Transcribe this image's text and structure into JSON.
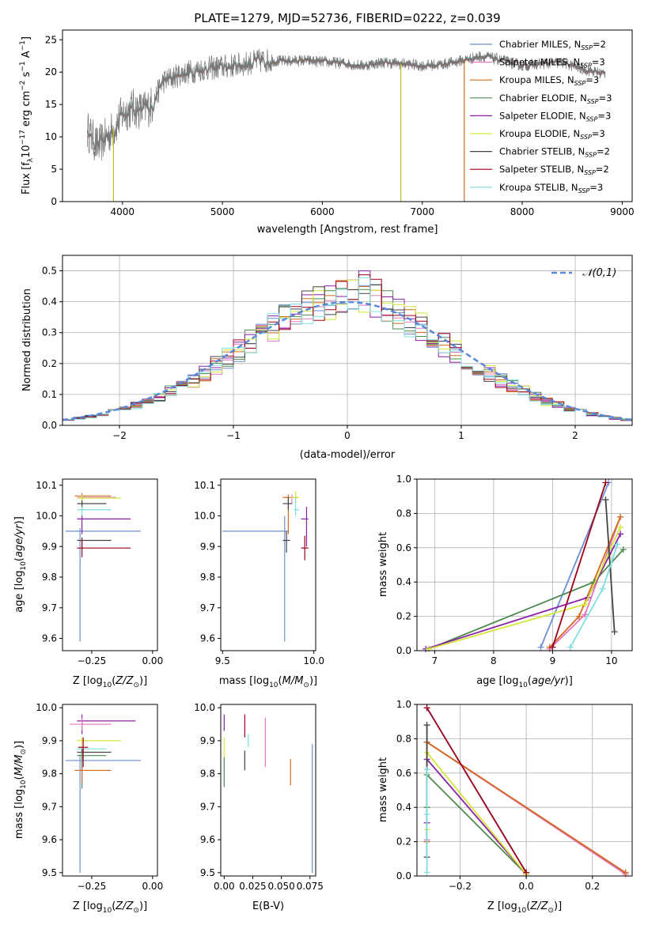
{
  "chart_data": [
    {
      "panel": "spectrum",
      "type": "line",
      "title": "PLATE=1279, MJD=52736, FIBERID=0222, z=0.039",
      "xlabel": "wavelength [Angstrom, rest frame]",
      "ylabel_parts": [
        "Flux [f",
        "λ",
        "10",
        "−17",
        " erg cm",
        "−2",
        " s",
        "−1",
        " A",
        "−1",
        "]"
      ],
      "xlim": [
        3400,
        9100
      ],
      "ylim": [
        0,
        26.5
      ],
      "xticks": [
        4000,
        5000,
        6000,
        7000,
        8000,
        9000
      ],
      "yticks": [
        0,
        5,
        10,
        15,
        20,
        25
      ],
      "continuum_knots": [
        [
          3650,
          11
        ],
        [
          3750,
          8.5
        ],
        [
          3900,
          11
        ],
        [
          4000,
          13.5
        ],
        [
          4100,
          14.5
        ],
        [
          4200,
          14
        ],
        [
          4300,
          15
        ],
        [
          4400,
          18.5
        ],
        [
          4600,
          19.8
        ],
        [
          4800,
          20.5
        ],
        [
          5000,
          20.8
        ],
        [
          5200,
          21.2
        ],
        [
          5400,
          21.8
        ],
        [
          5600,
          21.7
        ],
        [
          5800,
          21.8
        ],
        [
          6000,
          21.6
        ],
        [
          6200,
          21.4
        ],
        [
          6400,
          21
        ],
        [
          6600,
          21.5
        ],
        [
          6800,
          21.3
        ],
        [
          7000,
          21
        ],
        [
          7200,
          21.2
        ],
        [
          7400,
          21.8
        ],
        [
          7600,
          22.5
        ],
        [
          7800,
          21.8
        ],
        [
          8000,
          21
        ],
        [
          8200,
          21.3
        ],
        [
          8400,
          21.5
        ],
        [
          8600,
          20.5
        ],
        [
          8800,
          19.8
        ]
      ],
      "dropouts": [
        {
          "x": 3910,
          "color": "#bcbd22"
        },
        {
          "x": 6785,
          "color": "#bcbd22"
        },
        {
          "x": 7420,
          "color": "#d2691e"
        }
      ],
      "legend_position": "upper right",
      "series": [
        {
          "name": "Chabrier MILES",
          "nssp": "2",
          "color": "#6a8fd4"
        },
        {
          "name": "Salpeter MILES",
          "nssp": "3",
          "color": "#e377c2"
        },
        {
          "name": "Kroupa MILES",
          "nssp": "3",
          "color": "#d2691e"
        },
        {
          "name": "Chabrier ELODIE",
          "nssp": "3",
          "color": "#4d8a4d"
        },
        {
          "name": "Salpeter ELODIE",
          "nssp": "3",
          "color": "#8b1fa8"
        },
        {
          "name": "Kroupa ELODIE",
          "nssp": "3",
          "color": "#d4e636"
        },
        {
          "name": "Chabrier STELIB",
          "nssp": "2",
          "color": "#444444"
        },
        {
          "name": "Salpeter STELIB",
          "nssp": "2",
          "color": "#a0001a"
        },
        {
          "name": "Kroupa STELIB",
          "nssp": "3",
          "color": "#7fdfe0"
        }
      ],
      "data_color": "#777777"
    },
    {
      "panel": "residuals",
      "type": "histogram",
      "xlabel": "(data-model)/error",
      "ylabel": "Normed distribution",
      "xlim": [
        -2.5,
        2.5
      ],
      "ylim": [
        0,
        0.55
      ],
      "xticks": [
        -2,
        -1,
        0,
        1,
        2
      ],
      "yticks": [
        0.0,
        0.1,
        0.2,
        0.3,
        0.4,
        0.5
      ],
      "grid": true,
      "bin_width": 0.1,
      "legend": "𝒩(0,1)",
      "legend_position": "upper right",
      "reference_color": "#5b87d8"
    },
    {
      "panel": "age_vs_Z",
      "type": "errorbar",
      "xlabel": "Z [log10(Z/Z☉)]",
      "ylabel": "age [log10(age/yr)]",
      "xlim": [
        -0.37,
        0.02
      ],
      "ylim": [
        9.56,
        10.12
      ],
      "xticks": [
        -0.25,
        0.0
      ],
      "yticks": [
        9.6,
        9.7,
        9.8,
        9.9,
        10.0,
        10.1
      ],
      "points": [
        {
          "color": "#6a8fd4",
          "x": -0.298,
          "xerr": [
            0.06,
            0.25
          ],
          "y": 9.95,
          "yerr": [
            0.36,
            0.01
          ]
        },
        {
          "color": "#d2691e",
          "x": -0.29,
          "xerr": [
            0.03,
            0.12
          ],
          "y": 10.065,
          "yerr": [
            0.02,
            0.01
          ]
        },
        {
          "color": "#e377c2",
          "x": -0.29,
          "xerr": [
            0.02,
            0.14
          ],
          "y": 10.06,
          "yerr": [
            0.01,
            0.01
          ]
        },
        {
          "color": "#d4e636",
          "x": -0.29,
          "xerr": [
            0.02,
            0.16
          ],
          "y": 10.058,
          "yerr": [
            0.02,
            0.01
          ]
        },
        {
          "color": "#444444",
          "x": -0.29,
          "xerr": [
            0.02,
            0.1
          ],
          "y": 10.04,
          "yerr": [
            0.02,
            0.01
          ]
        },
        {
          "color": "#7fdfe0",
          "x": -0.29,
          "xerr": [
            0.02,
            0.12
          ],
          "y": 10.02,
          "yerr": [
            0.03,
            0.01
          ]
        },
        {
          "color": "#8b1fa8",
          "x": -0.29,
          "xerr": [
            0.02,
            0.2
          ],
          "y": 9.99,
          "yerr": [
            0.05,
            0.01
          ]
        },
        {
          "color": "#444444",
          "x": -0.29,
          "xerr": [
            0.02,
            0.12
          ],
          "y": 9.92,
          "yerr": [
            0.03,
            0.01
          ]
        },
        {
          "color": "#a0001a",
          "x": -0.29,
          "xerr": [
            0.02,
            0.2
          ],
          "y": 9.895,
          "yerr": [
            0.03,
            0.03
          ]
        }
      ]
    },
    {
      "panel": "age_vs_mass",
      "type": "errorbar",
      "xlabel": "mass [log10(M/M☉)]",
      "ylim": [
        9.56,
        10.12
      ],
      "xlim": [
        9.49,
        10.01
      ],
      "xticks": [
        9.5,
        10.0
      ],
      "yticks": [
        9.6,
        9.7,
        9.8,
        9.9,
        10.0,
        10.1
      ],
      "points": [
        {
          "color": "#6a8fd4",
          "x": 9.84,
          "xerr": [
            0.34,
            0.02
          ],
          "y": 9.95,
          "yerr": [
            0.36,
            0.05
          ]
        },
        {
          "color": "#d2691e",
          "x": 9.86,
          "xerr": [
            0.03,
            0.05
          ],
          "y": 10.06,
          "yerr": [
            0.12,
            0.01
          ]
        },
        {
          "color": "#e377c2",
          "x": 9.88,
          "xerr": [
            0.02,
            0.03
          ],
          "y": 10.06,
          "yerr": [
            0.02,
            0.01
          ]
        },
        {
          "color": "#d4e636",
          "x": 9.9,
          "xerr": [
            0.03,
            0.02
          ],
          "y": 10.06,
          "yerr": [
            0.02,
            0.02
          ]
        },
        {
          "color": "#444444",
          "x": 9.86,
          "xerr": [
            0.03,
            0.02
          ],
          "y": 10.04,
          "yerr": [
            0.02,
            0.02
          ]
        },
        {
          "color": "#7fdfe0",
          "x": 9.9,
          "xerr": [
            0.01,
            0.02
          ],
          "y": 10.02,
          "yerr": [
            0.02,
            0.04
          ]
        },
        {
          "color": "#8b1fa8",
          "x": 9.96,
          "xerr": [
            0.03,
            0.01
          ],
          "y": 9.99,
          "yerr": [
            0.09,
            0.04
          ]
        },
        {
          "color": "#444444",
          "x": 9.85,
          "xerr": [
            0.02,
            0.02
          ],
          "y": 9.92,
          "yerr": [
            0.04,
            0.03
          ]
        },
        {
          "color": "#a0001a",
          "x": 9.95,
          "xerr": [
            0.02,
            0.02
          ],
          "y": 9.895,
          "yerr": [
            0.04,
            0.04
          ]
        }
      ]
    },
    {
      "panel": "weight_vs_age",
      "type": "line",
      "xlabel": "age [log10(age/yr)]",
      "ylabel": "mass weight",
      "xlim": [
        6.7,
        10.35
      ],
      "ylim": [
        0,
        1
      ],
      "xticks": [
        7,
        8,
        9,
        10
      ],
      "yticks": [
        0.0,
        0.2,
        0.4,
        0.6,
        0.8,
        1.0
      ],
      "grid": true,
      "series": [
        {
          "color": "#6a8fd4",
          "x": [
            8.8,
            9.95
          ],
          "y": [
            0.02,
            0.98
          ]
        },
        {
          "color": "#e377c2",
          "x": [
            8.95,
            9.55,
            10.15
          ],
          "y": [
            0.01,
            0.21,
            0.78
          ]
        },
        {
          "color": "#d2691e",
          "x": [
            8.95,
            9.45,
            10.15
          ],
          "y": [
            0.02,
            0.2,
            0.78
          ]
        },
        {
          "color": "#4d8a4d",
          "x": [
            6.9,
            9.7,
            10.2
          ],
          "y": [
            0.01,
            0.4,
            0.59
          ]
        },
        {
          "color": "#8b1fa8",
          "x": [
            6.85,
            9.6,
            10.15
          ],
          "y": [
            0.01,
            0.31,
            0.68
          ]
        },
        {
          "color": "#d4e636",
          "x": [
            6.9,
            9.55,
            10.15
          ],
          "y": [
            0.01,
            0.27,
            0.72
          ]
        },
        {
          "color": "#444444",
          "x": [
            9.9,
            10.05
          ],
          "y": [
            0.88,
            0.11
          ]
        },
        {
          "color": "#a0001a",
          "x": [
            9.0,
            9.9
          ],
          "y": [
            0.02,
            0.98
          ]
        },
        {
          "color": "#7fdfe0",
          "x": [
            9.3,
            9.85,
            10.1
          ],
          "y": [
            0.02,
            0.36,
            0.62
          ]
        }
      ]
    },
    {
      "panel": "mass_vs_Z",
      "type": "errorbar",
      "xlabel": "Z [log10(Z/Z☉)]",
      "ylabel": "mass [log10(M/M☉)]",
      "xlim": [
        -0.37,
        0.02
      ],
      "ylim": [
        9.49,
        10.01
      ],
      "xticks": [
        -0.25,
        0.0
      ],
      "yticks": [
        9.5,
        9.6,
        9.7,
        9.8,
        9.9,
        10.0
      ],
      "points": [
        {
          "color": "#6a8fd4",
          "x": -0.298,
          "xerr": [
            0.06,
            0.25
          ],
          "y": 9.84,
          "yerr": [
            0.34,
            0.02
          ]
        },
        {
          "color": "#8b1fa8",
          "x": -0.29,
          "xerr": [
            0.02,
            0.22
          ],
          "y": 9.96,
          "yerr": [
            0.04,
            0.02
          ]
        },
        {
          "color": "#e377c2",
          "x": -0.29,
          "xerr": [
            0.05,
            0.12
          ],
          "y": 9.95,
          "yerr": [
            0.02,
            0.02
          ]
        },
        {
          "color": "#d4e636",
          "x": -0.29,
          "xerr": [
            0.02,
            0.16
          ],
          "y": 9.9,
          "yerr": [
            0.02,
            0.01
          ]
        },
        {
          "color": "#7fdfe0",
          "x": -0.29,
          "xerr": [
            0.02,
            0.1
          ],
          "y": 9.875,
          "yerr": [
            0.02,
            0.01
          ]
        },
        {
          "color": "#444444",
          "x": -0.29,
          "xerr": [
            0.02,
            0.12
          ],
          "y": 9.865,
          "yerr": [
            0.02,
            0.01
          ]
        },
        {
          "color": "#4d8a4d",
          "x": -0.29,
          "xerr": [
            0.02,
            0.1
          ],
          "y": 9.855,
          "yerr": [
            0.1,
            0.01
          ]
        },
        {
          "color": "#d2691e",
          "x": -0.29,
          "xerr": [
            0.03,
            0.12
          ],
          "y": 9.81,
          "yerr": [
            0.04,
            0.01
          ]
        },
        {
          "color": "#a0001a",
          "x": -0.285,
          "xerr": [
            0.02,
            0.02
          ],
          "y": 9.88,
          "yerr": [
            0.06,
            0.03
          ]
        }
      ]
    },
    {
      "panel": "mass_vs_EBV",
      "type": "errorbar",
      "xlabel": "E(B-V)",
      "xlim": [
        -0.003,
        0.08
      ],
      "ylim": [
        9.49,
        10.01
      ],
      "xticks": [
        0.0,
        0.025,
        0.05,
        0.075
      ],
      "xticklabels": [
        "0.00",
        "0.025",
        "0.050",
        "0.075"
      ],
      "yticks": [
        9.5,
        9.6,
        9.7,
        9.8,
        9.9,
        10.0
      ],
      "points": [
        {
          "color": "#4d8a4d",
          "x": 0.0,
          "y": 9.8,
          "yerr": [
            0.04,
            0.05
          ]
        },
        {
          "color": "#8b1fa8",
          "x": 0.0,
          "y": 9.94,
          "yerr": [
            0.01,
            0.04
          ]
        },
        {
          "color": "#d4e636",
          "x": 0.0,
          "y": 9.87,
          "yerr": [
            0.02,
            0.04
          ]
        },
        {
          "color": "#444444",
          "x": 0.018,
          "y": 9.84,
          "yerr": [
            0.03,
            0.03
          ]
        },
        {
          "color": "#a0001a",
          "x": 0.018,
          "y": 9.93,
          "yerr": [
            0.02,
            0.05
          ]
        },
        {
          "color": "#7fdfe0",
          "x": 0.021,
          "y": 9.9,
          "yerr": [
            0.02,
            0.02
          ]
        },
        {
          "color": "#e377c2",
          "x": 0.036,
          "y": 9.89,
          "yerr": [
            0.07,
            0.08
          ]
        },
        {
          "color": "#d2691e",
          "x": 0.058,
          "y": 9.805,
          "yerr": [
            0.04,
            0.04
          ]
        },
        {
          "color": "#6a8fd4",
          "x": 0.077,
          "y": 9.7,
          "yerr": [
            0.2,
            0.19
          ]
        }
      ]
    },
    {
      "panel": "weight_vs_Z",
      "type": "line",
      "xlabel": "Z [log10(Z/Z☉)]",
      "ylabel": "mass weight",
      "xlim": [
        -0.33,
        0.32
      ],
      "ylim": [
        0,
        1
      ],
      "xticks": [
        -0.2,
        0.0,
        0.2
      ],
      "yticks": [
        0.0,
        0.2,
        0.4,
        0.6,
        0.8,
        1.0
      ],
      "grid": true,
      "series": [
        {
          "color": "#6a8fd4",
          "x": [
            -0.3,
            0.0
          ],
          "y": [
            0.98,
            0.02
          ]
        },
        {
          "color": "#e377c2",
          "x": [
            -0.3,
            -0.3,
            0.3
          ],
          "y": [
            0.21,
            0.78,
            0.01
          ]
        },
        {
          "color": "#d2691e",
          "x": [
            -0.3,
            -0.3,
            0.3
          ],
          "y": [
            0.2,
            0.78,
            0.02
          ]
        },
        {
          "color": "#4d8a4d",
          "x": [
            -0.3,
            -0.3,
            0.0
          ],
          "y": [
            0.4,
            0.59,
            0.01
          ]
        },
        {
          "color": "#8b1fa8",
          "x": [
            -0.3,
            -0.3,
            0.0
          ],
          "y": [
            0.31,
            0.68,
            0.01
          ]
        },
        {
          "color": "#d4e636",
          "x": [
            -0.3,
            -0.3,
            0.0
          ],
          "y": [
            0.27,
            0.72,
            0.01
          ]
        },
        {
          "color": "#444444",
          "x": [
            -0.3,
            -0.3
          ],
          "y": [
            0.11,
            0.88
          ]
        },
        {
          "color": "#a0001a",
          "x": [
            -0.3,
            0.0
          ],
          "y": [
            0.98,
            0.02
          ]
        },
        {
          "color": "#7fdfe0",
          "x": [
            -0.3,
            -0.3,
            -0.3
          ],
          "y": [
            0.02,
            0.36,
            0.62
          ]
        }
      ]
    }
  ]
}
